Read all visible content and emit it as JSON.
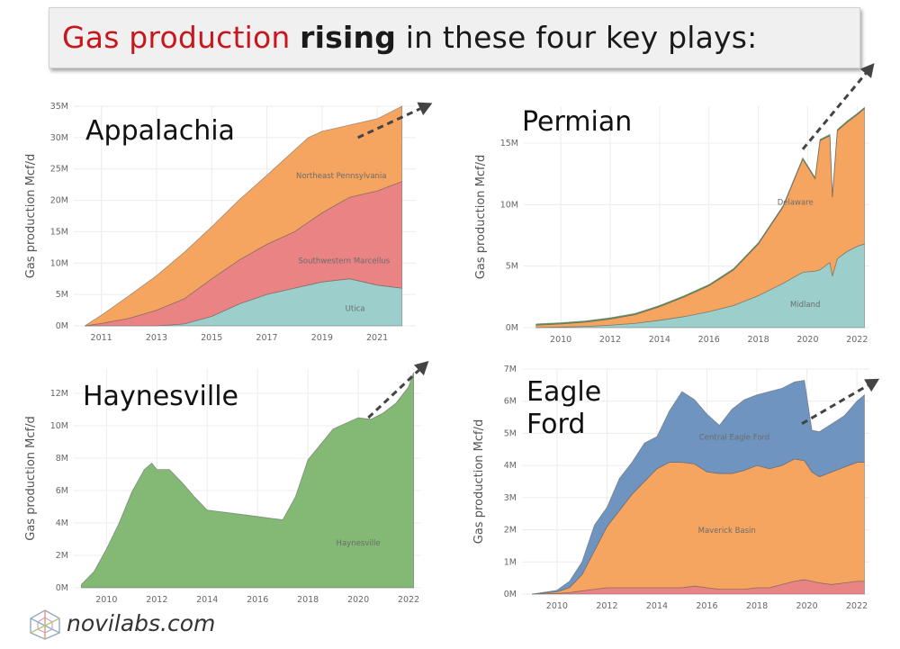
{
  "title": {
    "part1": "Gas production ",
    "part2": "rising",
    "part3": " in these four key plays:"
  },
  "footer": {
    "logo_text": "novilabs.com"
  },
  "colors": {
    "orange": "#f5a55f",
    "red": "#ea8383",
    "teal": "#9ccfcb",
    "green": "#83b875",
    "blue": "#7094c0",
    "arrow": "#444444"
  },
  "chart_data": [
    {
      "type": "area",
      "label": "Appalachia",
      "ylabel": "Gas production Mcf/d",
      "xlim": [
        2010.0,
        2022.4
      ],
      "ylim": [
        0,
        35
      ],
      "x_ticks": [
        2011,
        2013,
        2015,
        2017,
        2019,
        2021
      ],
      "y_ticks": [
        0,
        5,
        10,
        15,
        20,
        25,
        30,
        35
      ],
      "y_tick_labels": [
        "0M",
        "5M",
        "10M",
        "15M",
        "20M",
        "25M",
        "30M",
        "35M"
      ],
      "x": [
        2010.4,
        2011,
        2012,
        2013,
        2014,
        2015,
        2016,
        2017,
        2018,
        2018.5,
        2019,
        2020,
        2021,
        2021.9
      ],
      "series": [
        {
          "name": "Utica",
          "color": "#9ccfcb",
          "values": [
            0,
            0,
            0,
            0,
            0.3,
            1.5,
            3.5,
            5,
            6,
            6.5,
            7,
            7.5,
            6.5,
            6
          ]
        },
        {
          "name": "Southwestern Marcellus",
          "color": "#ea8383",
          "values": [
            0,
            0.4,
            1.2,
            2.5,
            4,
            6,
            7,
            8,
            9,
            10,
            11,
            13,
            15,
            17
          ]
        },
        {
          "name": "Northeast Pennsylvania",
          "color": "#f5a55f",
          "values": [
            0,
            1.3,
            3.6,
            5.5,
            7.4,
            8.3,
            9.6,
            11,
            13,
            13.5,
            13,
            11.5,
            11.5,
            12
          ]
        }
      ],
      "labels": [
        {
          "text": "Northeast Pennsylvania",
          "x": 2019.7,
          "y": 23.5
        },
        {
          "text": "Southwestern Marcellus",
          "x": 2019.8,
          "y": 10
        },
        {
          "text": "Utica",
          "x": 2020.2,
          "y": 2.4
        }
      ],
      "arrow": {
        "from": [
          2020.3,
          30
        ],
        "to": [
          2023,
          35.5
        ]
      }
    },
    {
      "type": "area",
      "label": "Permian",
      "ylabel": "Gas production Mcf/d",
      "xlim": [
        2008.5,
        2022.5
      ],
      "ylim": [
        0,
        18
      ],
      "x_ticks": [
        2010,
        2012,
        2014,
        2016,
        2018,
        2020,
        2022
      ],
      "y_ticks": [
        0,
        5,
        10,
        15
      ],
      "y_tick_labels": [
        "0M",
        "5M",
        "10M",
        "15M"
      ],
      "x": [
        2009,
        2010,
        2011,
        2012,
        2013,
        2014,
        2015,
        2016,
        2017,
        2018,
        2019,
        2019.8,
        2020.3,
        2020.5,
        2020.9,
        2021,
        2021.2,
        2021.6,
        2022,
        2022.3
      ],
      "series": [
        {
          "name": "Midland",
          "color": "#9ccfcb",
          "values": [
            0,
            0.05,
            0.1,
            0.2,
            0.35,
            0.6,
            0.9,
            1.3,
            1.8,
            2.6,
            3.6,
            4.5,
            4.6,
            4.7,
            5.3,
            4.2,
            5.6,
            6.2,
            6.6,
            6.8
          ]
        },
        {
          "name": "Delaware",
          "color": "#f5a55f",
          "values": [
            0.2,
            0.25,
            0.35,
            0.5,
            0.7,
            1.1,
            1.6,
            2.1,
            2.9,
            4.2,
            6.2,
            9.2,
            7.5,
            10.5,
            10.3,
            6.4,
            10.4,
            10.5,
            10.7,
            11
          ]
        },
        {
          "name": "",
          "color": "#5aa05a",
          "values": [
            0.1,
            0.1,
            0.1,
            0.1,
            0.1,
            0.1,
            0.1,
            0.1,
            0.1,
            0.1,
            0.1,
            0.1,
            0.1,
            0.1,
            0.1,
            0.1,
            0.1,
            0.1,
            0.1,
            0.1
          ]
        }
      ],
      "labels": [
        {
          "text": "Delaware",
          "x": 2019.5,
          "y": 10
        },
        {
          "text": "Midland",
          "x": 2019.9,
          "y": 1.7
        }
      ],
      "arrow": {
        "from": [
          2019.8,
          14.5
        ],
        "to": [
          2022.7,
          21.5
        ]
      }
    },
    {
      "type": "area",
      "label": "Haynesville",
      "ylabel": "Gas production Mcf/d",
      "xlim": [
        2008.7,
        2022.5
      ],
      "ylim": [
        0,
        13.5
      ],
      "x_ticks": [
        2010,
        2012,
        2014,
        2016,
        2018,
        2020,
        2022
      ],
      "y_ticks": [
        0,
        2,
        4,
        6,
        8,
        10,
        12
      ],
      "y_tick_labels": [
        "0M",
        "2M",
        "4M",
        "6M",
        "8M",
        "10M",
        "12M"
      ],
      "x": [
        2009,
        2009.5,
        2010,
        2010.5,
        2011,
        2011.5,
        2011.8,
        2012,
        2012.5,
        2013,
        2013.5,
        2014,
        2015,
        2016,
        2016.5,
        2017,
        2017.5,
        2018,
        2019,
        2020,
        2020.5,
        2021,
        2021.5,
        2022,
        2022.2
      ],
      "series": [
        {
          "name": "Haynesville",
          "color": "#83b875",
          "values": [
            0.2,
            1,
            2.4,
            4,
            5.9,
            7.3,
            7.7,
            7.3,
            7.3,
            6.5,
            5.6,
            4.8,
            4.6,
            4.4,
            4.3,
            4.2,
            5.6,
            7.9,
            9.8,
            10.5,
            10.4,
            10.8,
            11.4,
            12.4,
            13.3
          ]
        }
      ],
      "labels": [
        {
          "text": "Haynesville",
          "x": 2020,
          "y": 2.6
        }
      ],
      "arrow": {
        "from": [
          2020.4,
          10.5
        ],
        "to": [
          2022.8,
          14
        ]
      }
    },
    {
      "type": "area",
      "label": "Eagle\nFord",
      "ylabel": "Gas production Mcf/d",
      "xlim": [
        2008.6,
        2022.5
      ],
      "ylim": [
        0,
        7
      ],
      "x_ticks": [
        2010,
        2012,
        2014,
        2016,
        2018,
        2020,
        2022
      ],
      "y_ticks": [
        0,
        1,
        2,
        3,
        4,
        5,
        6,
        7
      ],
      "y_tick_labels": [
        "0M",
        "1M",
        "2M",
        "3M",
        "4M",
        "5M",
        "6M",
        "7M"
      ],
      "x": [
        2009,
        2010,
        2010.5,
        2011,
        2011.5,
        2012,
        2012.5,
        2013,
        2013.5,
        2014,
        2014.5,
        2015,
        2015.5,
        2016,
        2016.5,
        2017,
        2017.5,
        2018,
        2018.5,
        2019,
        2019.5,
        2019.9,
        2020.2,
        2020.5,
        2021,
        2021.5,
        2022,
        2022.3
      ],
      "series": [
        {
          "name": "",
          "color": "#ea8383",
          "values": [
            0,
            0.02,
            0.05,
            0.1,
            0.15,
            0.2,
            0.2,
            0.2,
            0.2,
            0.2,
            0.2,
            0.2,
            0.25,
            0.2,
            0.15,
            0.15,
            0.15,
            0.2,
            0.2,
            0.3,
            0.4,
            0.45,
            0.4,
            0.35,
            0.3,
            0.35,
            0.4,
            0.4
          ]
        },
        {
          "name": "Maverick Basin",
          "color": "#f5a55f",
          "values": [
            0,
            0.05,
            0.15,
            0.5,
            1.2,
            1.9,
            2.4,
            2.9,
            3.3,
            3.7,
            3.9,
            3.9,
            3.8,
            3.6,
            3.6,
            3.6,
            3.7,
            3.8,
            3.7,
            3.7,
            3.8,
            3.7,
            3.4,
            3.3,
            3.5,
            3.6,
            3.7,
            3.7
          ]
        },
        {
          "name": "Central Eagle Ford",
          "color": "#7094c0",
          "values": [
            0,
            0.05,
            0.2,
            0.4,
            0.8,
            0.6,
            1.0,
            1.0,
            1.2,
            1.0,
            1.6,
            2.2,
            2.0,
            1.8,
            1.5,
            2.0,
            2.2,
            2.2,
            2.4,
            2.4,
            2.4,
            2.5,
            1.3,
            1.4,
            1.5,
            1.6,
            1.9,
            2.1
          ]
        }
      ],
      "labels": [
        {
          "text": "Central Eagle Ford",
          "x": 2017.1,
          "y": 4.8
        },
        {
          "text": "Maverick Basin",
          "x": 2016.8,
          "y": 1.9
        }
      ],
      "arrow": {
        "from": [
          2019.8,
          5.3
        ],
        "to": [
          2022.9,
          6.7
        ]
      }
    }
  ]
}
